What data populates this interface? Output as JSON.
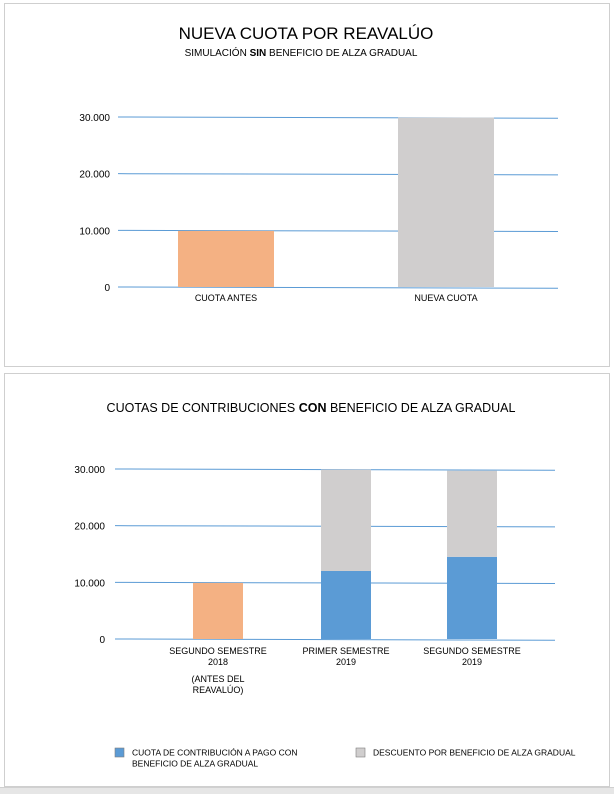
{
  "colors": {
    "before": "#f4b183",
    "new": "#d0cece",
    "gradual": "#5b9bd5",
    "discount": "#d0cece",
    "grid": "#5b9bd5"
  },
  "chart_data": [
    {
      "type": "bar",
      "title": "NUEVA CUOTA POR REAVALÚO",
      "subtitle": {
        "prefix": "SIMULACIÓN ",
        "bold": "SIN",
        "suffix": " BENEFICIO DE ALZA GRADUAL"
      },
      "categories": [
        "CUOTA ANTES",
        "NUEVA CUOTA"
      ],
      "values": [
        9900,
        29900
      ],
      "bar_colors": [
        "#f4b183",
        "#d0cece"
      ],
      "ylim": [
        0,
        30000
      ],
      "yticks": [
        0,
        10000,
        20000,
        30000
      ],
      "ytick_labels": [
        "0",
        "10.000",
        "20.000",
        "30.000"
      ],
      "grid": true
    },
    {
      "type": "bar",
      "stacked": true,
      "title": {
        "prefix": "CUOTAS DE CONTRIBUCIONES ",
        "bold": "CON",
        "suffix": " BENEFICIO DE ALZA GRADUAL"
      },
      "categories": [
        {
          "lines": [
            "SEGUNDO SEMESTRE",
            "2018"
          ],
          "extra": [
            "(ANTES DEL",
            "REAVALÚO)"
          ]
        },
        {
          "lines": [
            "PRIMER SEMESTRE",
            "2019"
          ],
          "extra": []
        },
        {
          "lines": [
            "SEGUNDO SEMESTRE",
            "2019"
          ],
          "extra": []
        }
      ],
      "series": [
        {
          "name": "CUOTA DE CONTRIBUCIÓN A PAGO CON BENEFICIO DE ALZA GRADUAL",
          "values": [
            9900,
            12000,
            14500
          ],
          "colors": [
            "#f4b183",
            "#5b9bd5",
            "#5b9bd5"
          ]
        },
        {
          "name": "DESCUENTO POR BENEFICIO DE ALZA GRADUAL",
          "values": [
            0,
            17900,
            15200
          ],
          "colors": [
            "#d0cece",
            "#d0cece",
            "#d0cece"
          ]
        }
      ],
      "legend": {
        "position": "bottom",
        "items": [
          {
            "lines": [
              "CUOTA DE CONTRIBUCIÓN A PAGO CON",
              "BENEFICIO DE ALZA GRADUAL"
            ],
            "color": "#5b9bd5"
          },
          {
            "lines": [
              "DESCUENTO POR BENEFICIO DE ALZA GRADUAL"
            ],
            "color": "#d0cece"
          }
        ]
      },
      "ylim": [
        0,
        30000
      ],
      "yticks": [
        0,
        10000,
        20000,
        30000
      ],
      "ytick_labels": [
        "0",
        "10.000",
        "20.000",
        "30.000"
      ],
      "grid": true
    }
  ]
}
